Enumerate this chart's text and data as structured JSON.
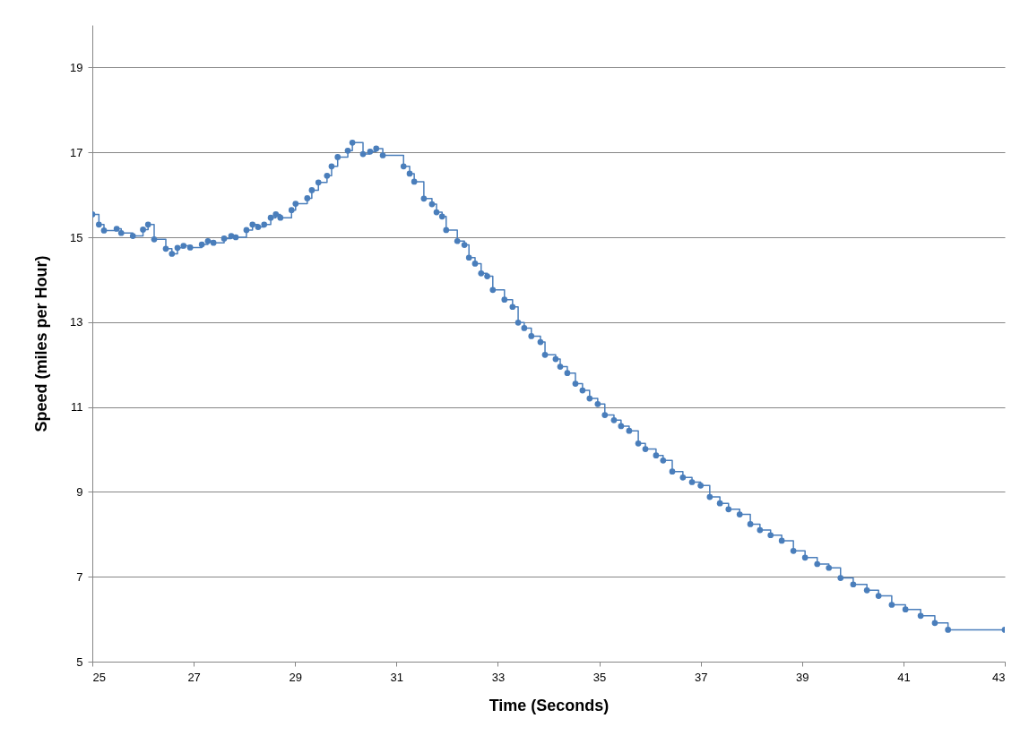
{
  "chart_data": {
    "type": "step",
    "xlabel": "Time (Seconds)",
    "ylabel": "Speed (miles per Hour)",
    "x": [
      25.0,
      25.13,
      25.23,
      25.48,
      25.57,
      25.8,
      26.0,
      26.1,
      26.22,
      26.45,
      26.57,
      26.68,
      26.8,
      26.93,
      27.16,
      27.28,
      27.39,
      27.6,
      27.74,
      27.83,
      28.04,
      28.16,
      28.27,
      28.39,
      28.52,
      28.62,
      28.71,
      28.93,
      29.01,
      29.24,
      29.33,
      29.46,
      29.63,
      29.72,
      29.84,
      30.04,
      30.13,
      30.34,
      30.48,
      30.6,
      30.73,
      31.14,
      31.26,
      31.35,
      31.54,
      31.7,
      31.79,
      31.9,
      31.98,
      32.2,
      32.34,
      32.43,
      32.55,
      32.67,
      32.79,
      32.9,
      33.13,
      33.29,
      33.4,
      33.52,
      33.66,
      33.84,
      33.93,
      34.14,
      34.23,
      34.37,
      34.53,
      34.67,
      34.81,
      34.97,
      35.11,
      35.29,
      35.43,
      35.59,
      35.77,
      35.91,
      36.12,
      36.26,
      36.44,
      36.65,
      36.83,
      37.0,
      37.18,
      37.38,
      37.55,
      37.77,
      37.98,
      38.17,
      38.38,
      38.6,
      38.83,
      39.06,
      39.3,
      39.53,
      39.76,
      40.01,
      40.28,
      40.51,
      40.77,
      41.04,
      41.34,
      41.62,
      41.88,
      43.0
    ],
    "series": [
      {
        "color": "#4a7ebb",
        "values": [
          15.54,
          15.3,
          15.16,
          15.2,
          15.1,
          15.03,
          15.18,
          15.3,
          14.95,
          14.73,
          14.61,
          14.75,
          14.8,
          14.76,
          14.83,
          14.91,
          14.87,
          14.97,
          15.03,
          15.0,
          15.17,
          15.3,
          15.24,
          15.3,
          15.46,
          15.54,
          15.46,
          15.64,
          15.79,
          15.92,
          16.11,
          16.29,
          16.45,
          16.67,
          16.89,
          17.04,
          17.23,
          16.96,
          17.02,
          17.09,
          16.93,
          16.67,
          16.5,
          16.31,
          15.91,
          15.78,
          15.59,
          15.49,
          15.17,
          14.91,
          14.82,
          14.52,
          14.38,
          14.15,
          14.08,
          13.76,
          13.53,
          13.36,
          12.99,
          12.86,
          12.67,
          12.53,
          12.23,
          12.13,
          11.95,
          11.8,
          11.55,
          11.39,
          11.2,
          11.07,
          10.81,
          10.69,
          10.55,
          10.44,
          10.14,
          10.01,
          9.86,
          9.74,
          9.48,
          9.34,
          9.23,
          9.15,
          8.88,
          8.73,
          8.59,
          8.47,
          8.24,
          8.1,
          7.98,
          7.85,
          7.61,
          7.45,
          7.3,
          7.21,
          6.97,
          6.82,
          6.68,
          6.55,
          6.34,
          6.23,
          6.08,
          5.91,
          5.75,
          5.75
        ]
      }
    ],
    "xlim": [
      25,
      43
    ],
    "xticks": [
      25,
      27,
      29,
      31,
      33,
      35,
      37,
      39,
      41,
      43
    ],
    "ylim": [
      5,
      20
    ],
    "yticks": [
      5,
      7,
      9,
      11,
      13,
      15,
      17,
      19
    ],
    "grid": "y",
    "marker": "circle",
    "line_style": "solid"
  }
}
